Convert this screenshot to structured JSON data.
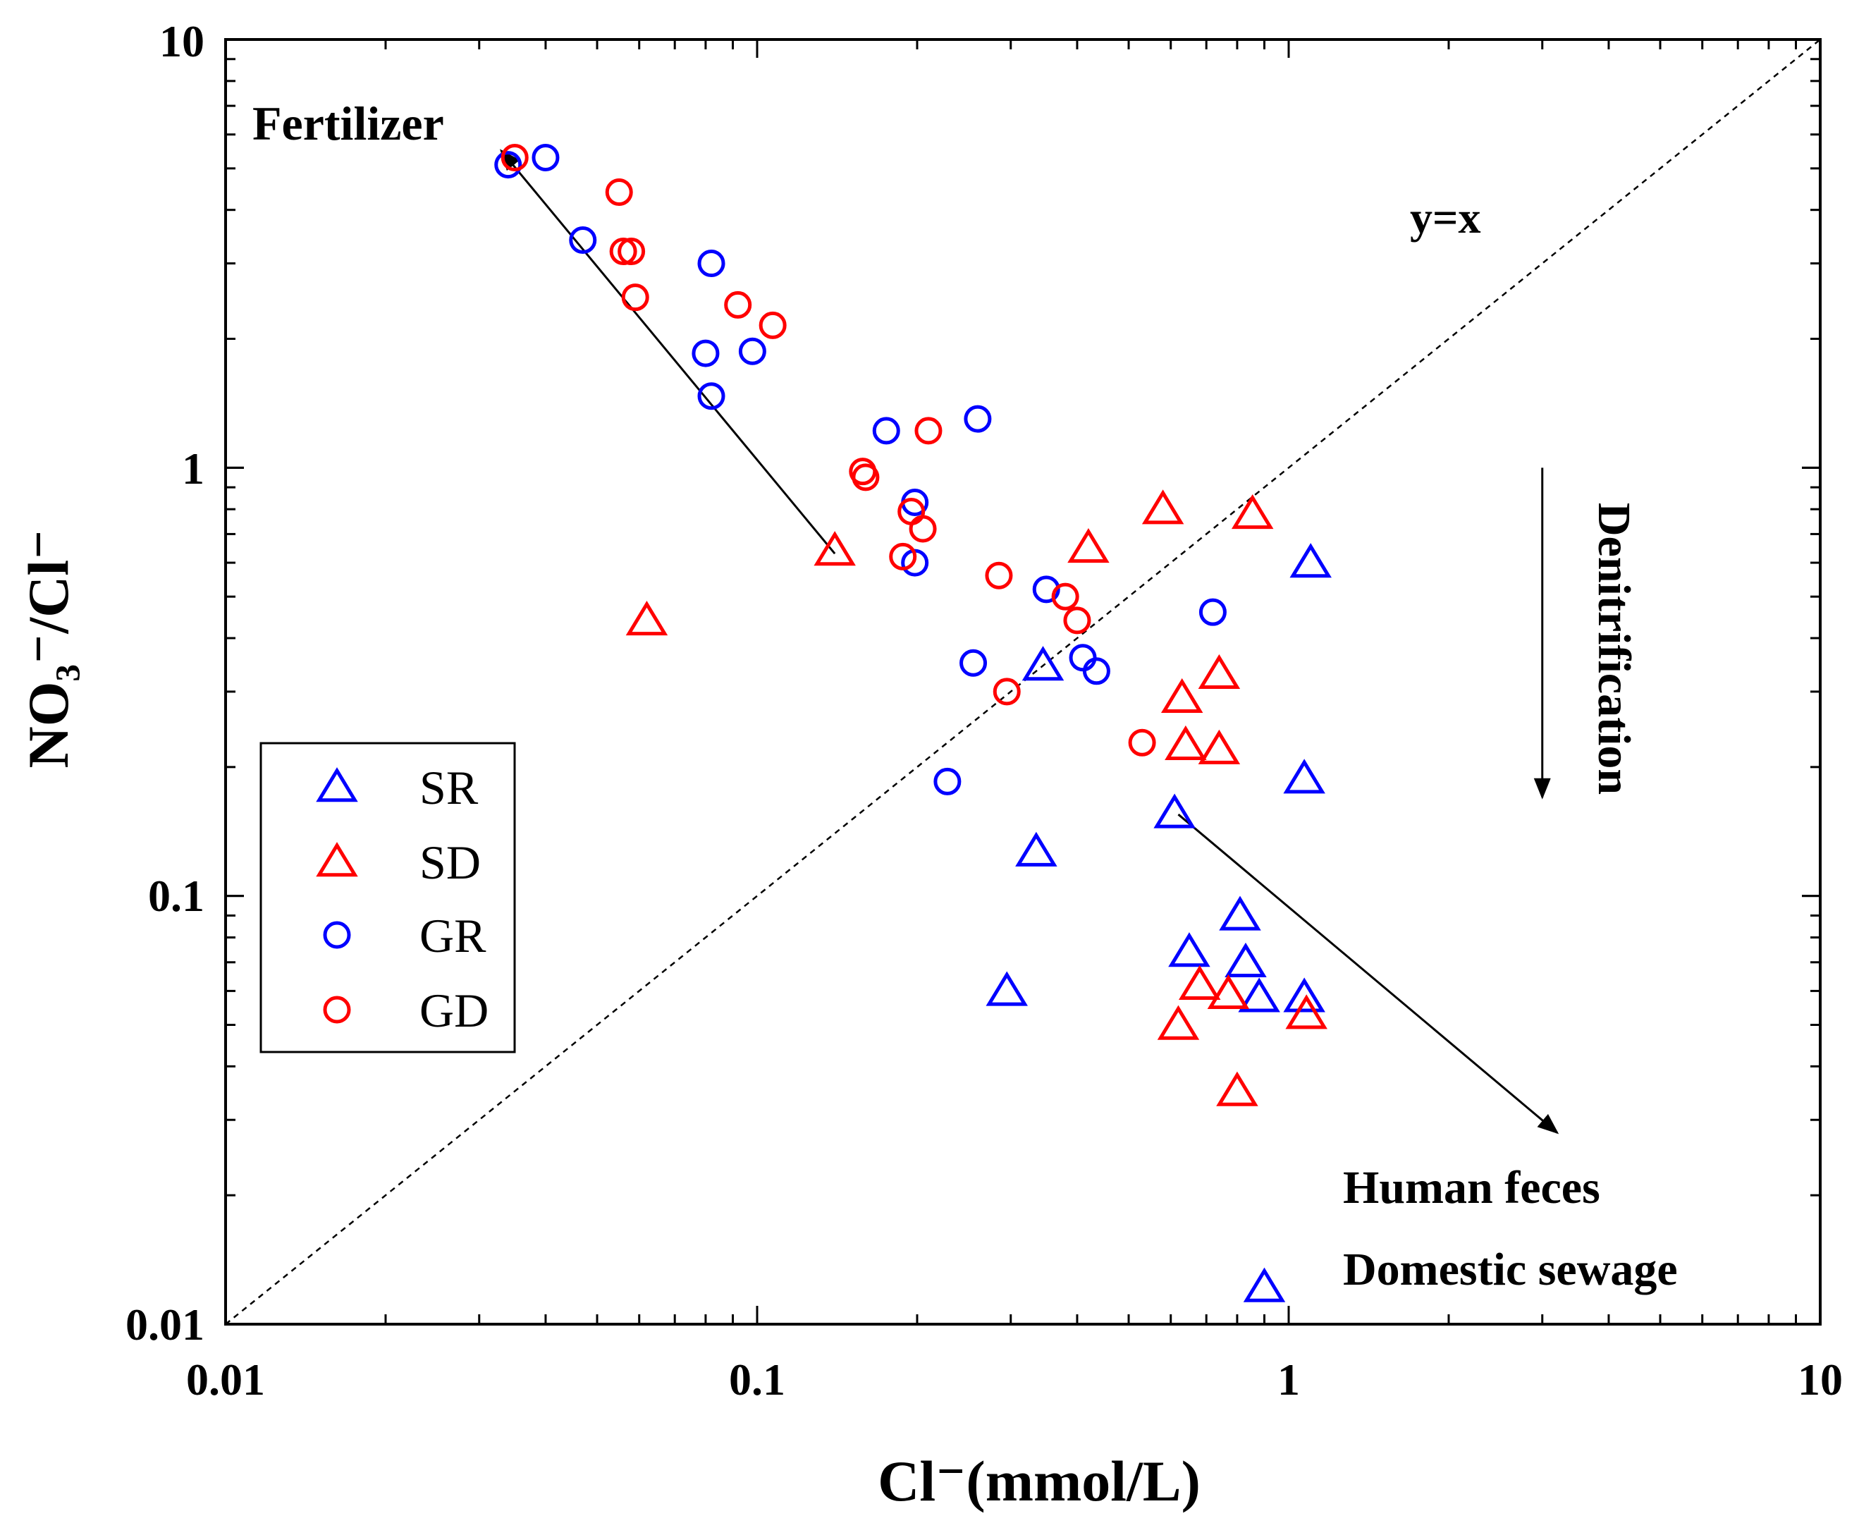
{
  "chart_data": {
    "type": "scatter",
    "title": "",
    "xlabel": "Cl⁻(mmol/L)",
    "ylabel": "NO₃⁻/Cl⁻",
    "xscale": "log",
    "yscale": "log",
    "xlim": [
      0.01,
      10
    ],
    "ylim": [
      0.01,
      10
    ],
    "x_ticks": [
      "0.01",
      "0.1",
      "1",
      "10"
    ],
    "y_ticks": [
      "0.01",
      "0.1",
      "1",
      "10"
    ],
    "grid": false,
    "legend_position": "middle-left",
    "reference_line": {
      "label": "y=x",
      "style": "dashed"
    },
    "annotations": [
      {
        "id": "fertilizer",
        "text": "Fertilizer",
        "arrow_from": [
          0.14,
          0.63
        ],
        "arrow_to": [
          0.033,
          5.5
        ]
      },
      {
        "id": "y-eq-x",
        "text": "y=x"
      },
      {
        "id": "denitrification",
        "text": "Denitrification",
        "arrow_from": [
          3.0,
          1.0
        ],
        "arrow_to": [
          3.0,
          0.17
        ]
      },
      {
        "id": "human-feces",
        "text": "Human feces",
        "arrow_from": [
          0.62,
          0.155
        ],
        "arrow_to": [
          3.2,
          0.028
        ]
      },
      {
        "id": "domestic-sewage",
        "text": "Domestic sewage",
        "marker_x": 0.9,
        "marker_y": 0.0122
      }
    ],
    "series": [
      {
        "name": "SR",
        "marker": "triangle",
        "color": "#0000ff",
        "points": [
          [
            1.1,
            0.6
          ],
          [
            1.07,
            0.188
          ],
          [
            0.61,
            0.156
          ],
          [
            0.345,
            0.345
          ],
          [
            0.335,
            0.127
          ],
          [
            0.81,
            0.09
          ],
          [
            0.65,
            0.074
          ],
          [
            0.83,
            0.07
          ],
          [
            0.88,
            0.058
          ],
          [
            1.07,
            0.058
          ],
          [
            0.295,
            0.06
          ],
          [
            0.9,
            0.0122
          ]
        ]
      },
      {
        "name": "SD",
        "marker": "triangle",
        "color": "#ff0000",
        "points": [
          [
            0.58,
            0.8
          ],
          [
            0.855,
            0.78
          ],
          [
            0.42,
            0.65
          ],
          [
            0.14,
            0.64
          ],
          [
            0.062,
            0.44
          ],
          [
            0.74,
            0.33
          ],
          [
            0.63,
            0.29
          ],
          [
            0.64,
            0.225
          ],
          [
            0.74,
            0.22
          ],
          [
            0.68,
            0.062
          ],
          [
            0.77,
            0.059
          ],
          [
            1.08,
            0.053
          ],
          [
            0.62,
            0.05
          ],
          [
            0.8,
            0.035
          ]
        ]
      },
      {
        "name": "GR",
        "marker": "circle",
        "color": "#0000ff",
        "points": [
          [
            0.034,
            5.1
          ],
          [
            0.04,
            5.3
          ],
          [
            0.047,
            3.4
          ],
          [
            0.082,
            3.0
          ],
          [
            0.08,
            1.85
          ],
          [
            0.098,
            1.87
          ],
          [
            0.082,
            1.47
          ],
          [
            0.175,
            1.22
          ],
          [
            0.26,
            1.3
          ],
          [
            0.198,
            0.83
          ],
          [
            0.198,
            0.6
          ],
          [
            0.35,
            0.52
          ],
          [
            0.255,
            0.35
          ],
          [
            0.41,
            0.36
          ],
          [
            0.435,
            0.335
          ],
          [
            0.72,
            0.46
          ],
          [
            0.228,
            0.185
          ]
        ]
      },
      {
        "name": "GD",
        "marker": "circle",
        "color": "#ff0000",
        "points": [
          [
            0.035,
            5.3
          ],
          [
            0.055,
            4.4
          ],
          [
            0.056,
            3.2
          ],
          [
            0.058,
            3.2
          ],
          [
            0.059,
            2.5
          ],
          [
            0.092,
            2.4
          ],
          [
            0.107,
            2.15
          ],
          [
            0.21,
            1.22
          ],
          [
            0.158,
            0.98
          ],
          [
            0.16,
            0.95
          ],
          [
            0.195,
            0.79
          ],
          [
            0.205,
            0.72
          ],
          [
            0.188,
            0.62
          ],
          [
            0.285,
            0.56
          ],
          [
            0.38,
            0.5
          ],
          [
            0.4,
            0.44
          ],
          [
            0.295,
            0.3
          ],
          [
            0.53,
            0.228
          ]
        ]
      }
    ]
  }
}
